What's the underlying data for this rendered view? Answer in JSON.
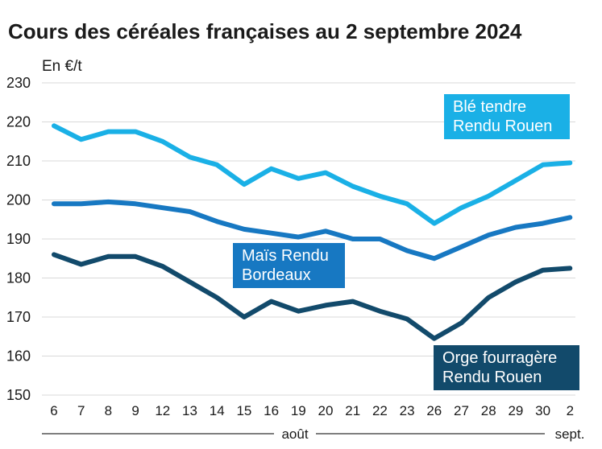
{
  "chart_data": {
    "type": "line",
    "title": "Cours des céréales françaises au 2 septembre 2024",
    "ylabel": "En €/t",
    "ylim": [
      150,
      230
    ],
    "yticks": [
      150,
      160,
      170,
      180,
      190,
      200,
      210,
      220,
      230
    ],
    "categories": [
      "6",
      "7",
      "8",
      "9",
      "12",
      "13",
      "14",
      "15",
      "16",
      "19",
      "20",
      "21",
      "22",
      "23",
      "26",
      "27",
      "28",
      "29",
      "30",
      "2"
    ],
    "months": [
      {
        "label": "août"
      },
      {
        "label": "sept."
      }
    ],
    "grid": true,
    "series": [
      {
        "name": "Blé tendre Rendu Rouen",
        "label_lines": [
          "Blé tendre",
          "Rendu Rouen"
        ],
        "color": "#1ab0e6",
        "values": [
          219,
          215.5,
          217.5,
          217.5,
          215,
          211,
          209,
          204,
          208,
          205.5,
          207,
          203.5,
          201,
          199,
          194,
          198,
          201,
          205,
          209,
          209.5
        ]
      },
      {
        "name": "Maïs Rendu Bordeaux",
        "label_lines": [
          "Maïs Rendu",
          "Bordeaux"
        ],
        "color": "#1778c2",
        "values": [
          199,
          199,
          199.5,
          199,
          198,
          197,
          194.5,
          192.5,
          191.5,
          190.5,
          192,
          190,
          190,
          187,
          185,
          188,
          191,
          193,
          194,
          195.5
        ]
      },
      {
        "name": "Orge fourragère Rendu Rouen",
        "label_lines": [
          "Orge fourragère",
          "Rendu Rouen"
        ],
        "color": "#124a6b",
        "values": [
          186,
          183.5,
          185.5,
          185.5,
          183,
          179,
          175,
          170,
          174,
          171.5,
          173,
          174,
          171.5,
          169.5,
          164.5,
          168.5,
          175,
          179,
          182,
          182.5
        ]
      }
    ]
  }
}
